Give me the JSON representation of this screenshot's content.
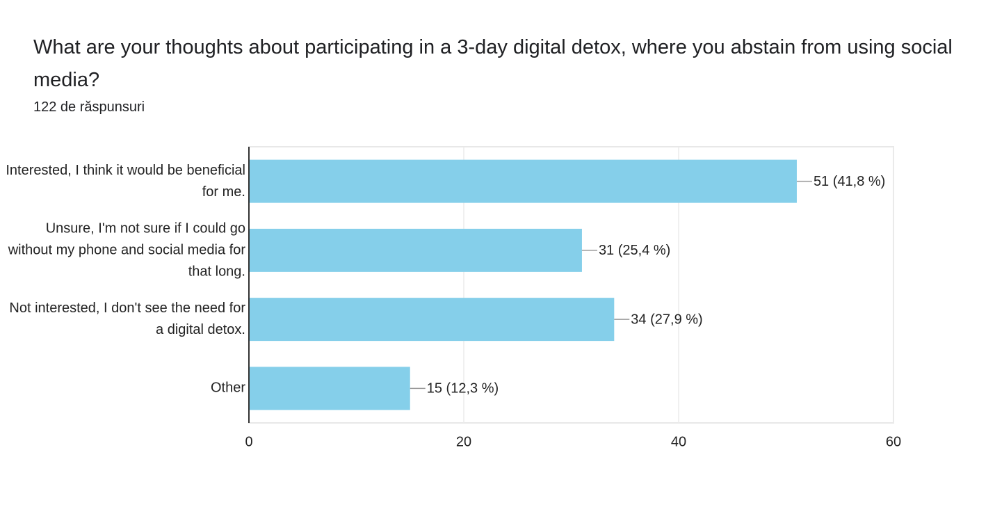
{
  "chart_data": {
    "type": "barh",
    "title": "What are your thoughts about participating in a 3-day digital detox, where you abstain from using social media?",
    "subtitle": "122 de răspunsuri",
    "categories": [
      "Interested, I think it would be beneficial for me.",
      "Unsure, I'm not sure if I could go without my phone and social media for that long.",
      "Not interested, I don't see the need for a digital detox.",
      "Other"
    ],
    "values": [
      51,
      31,
      34,
      15
    ],
    "value_labels": [
      "51 (41,8 %)",
      "31 (25,4 %)",
      "34 (27,9 %)",
      "15 (12,3 %)"
    ],
    "color": "#85cfea",
    "xlim": [
      0,
      60
    ],
    "xticks": [
      0,
      20,
      40,
      60
    ],
    "grid": true
  }
}
